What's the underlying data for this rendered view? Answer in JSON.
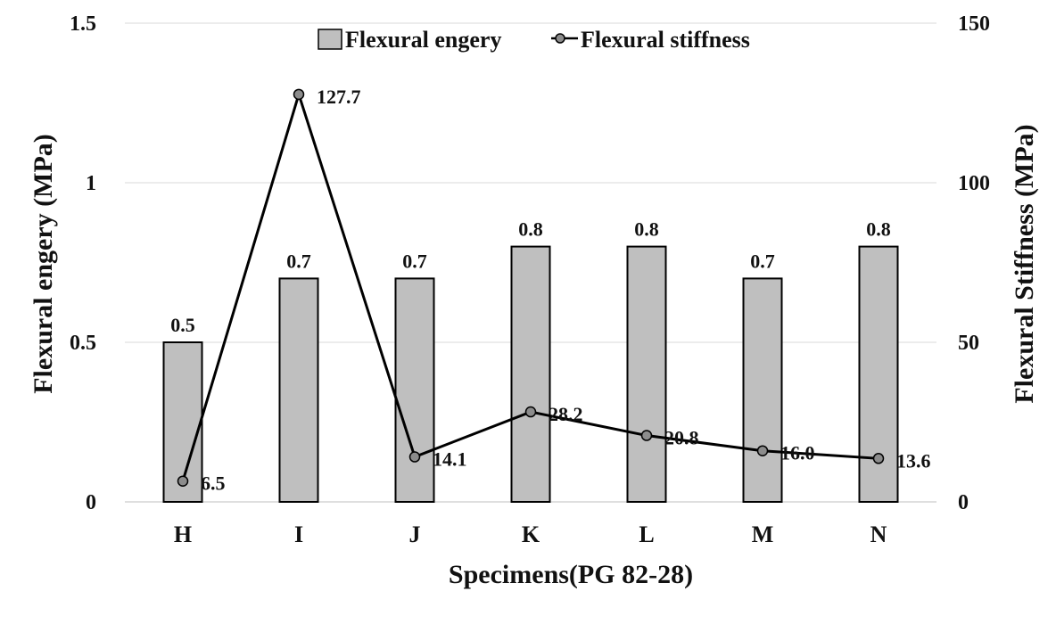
{
  "chart_data": {
    "type": "bar+line",
    "categories": [
      "H",
      "I",
      "J",
      "K",
      "L",
      "M",
      "N"
    ],
    "series": [
      {
        "name": "Flexural engery",
        "type": "bar",
        "axis": "left",
        "values": [
          0.5,
          0.7,
          0.7,
          0.8,
          0.8,
          0.7,
          0.8
        ],
        "labels": [
          "0.5",
          "0.7",
          "0.7",
          "0.8",
          "0.8",
          "0.7",
          "0.8"
        ]
      },
      {
        "name": "Flexural stiffness",
        "type": "line",
        "axis": "right",
        "values": [
          6.5,
          127.7,
          14.1,
          28.2,
          20.8,
          16.0,
          13.6
        ],
        "labels": [
          "6.5",
          "127.7",
          "14.1",
          "28.2",
          "20.8",
          "16.0",
          "13.6"
        ]
      }
    ],
    "xlabel": "Specimens(PG 82-28)",
    "ylabel_left": "Flexural engery (MPa)",
    "ylabel_right": "Flexural Stiffness (MPa)",
    "ylim_left": [
      0,
      1.5
    ],
    "ylim_right": [
      0,
      150
    ],
    "yticks_left": [
      "0",
      "0.5",
      "1",
      "1.5"
    ],
    "yticks_right": [
      "0",
      "50",
      "100",
      "150"
    ],
    "grid": true,
    "legend": "top-center",
    "colors": {
      "bar_fill": "#bfbfbf",
      "bar_stroke": "#000000",
      "line": "#000000",
      "marker": "#8c8c8c",
      "grid": "#d9d9d9"
    }
  }
}
